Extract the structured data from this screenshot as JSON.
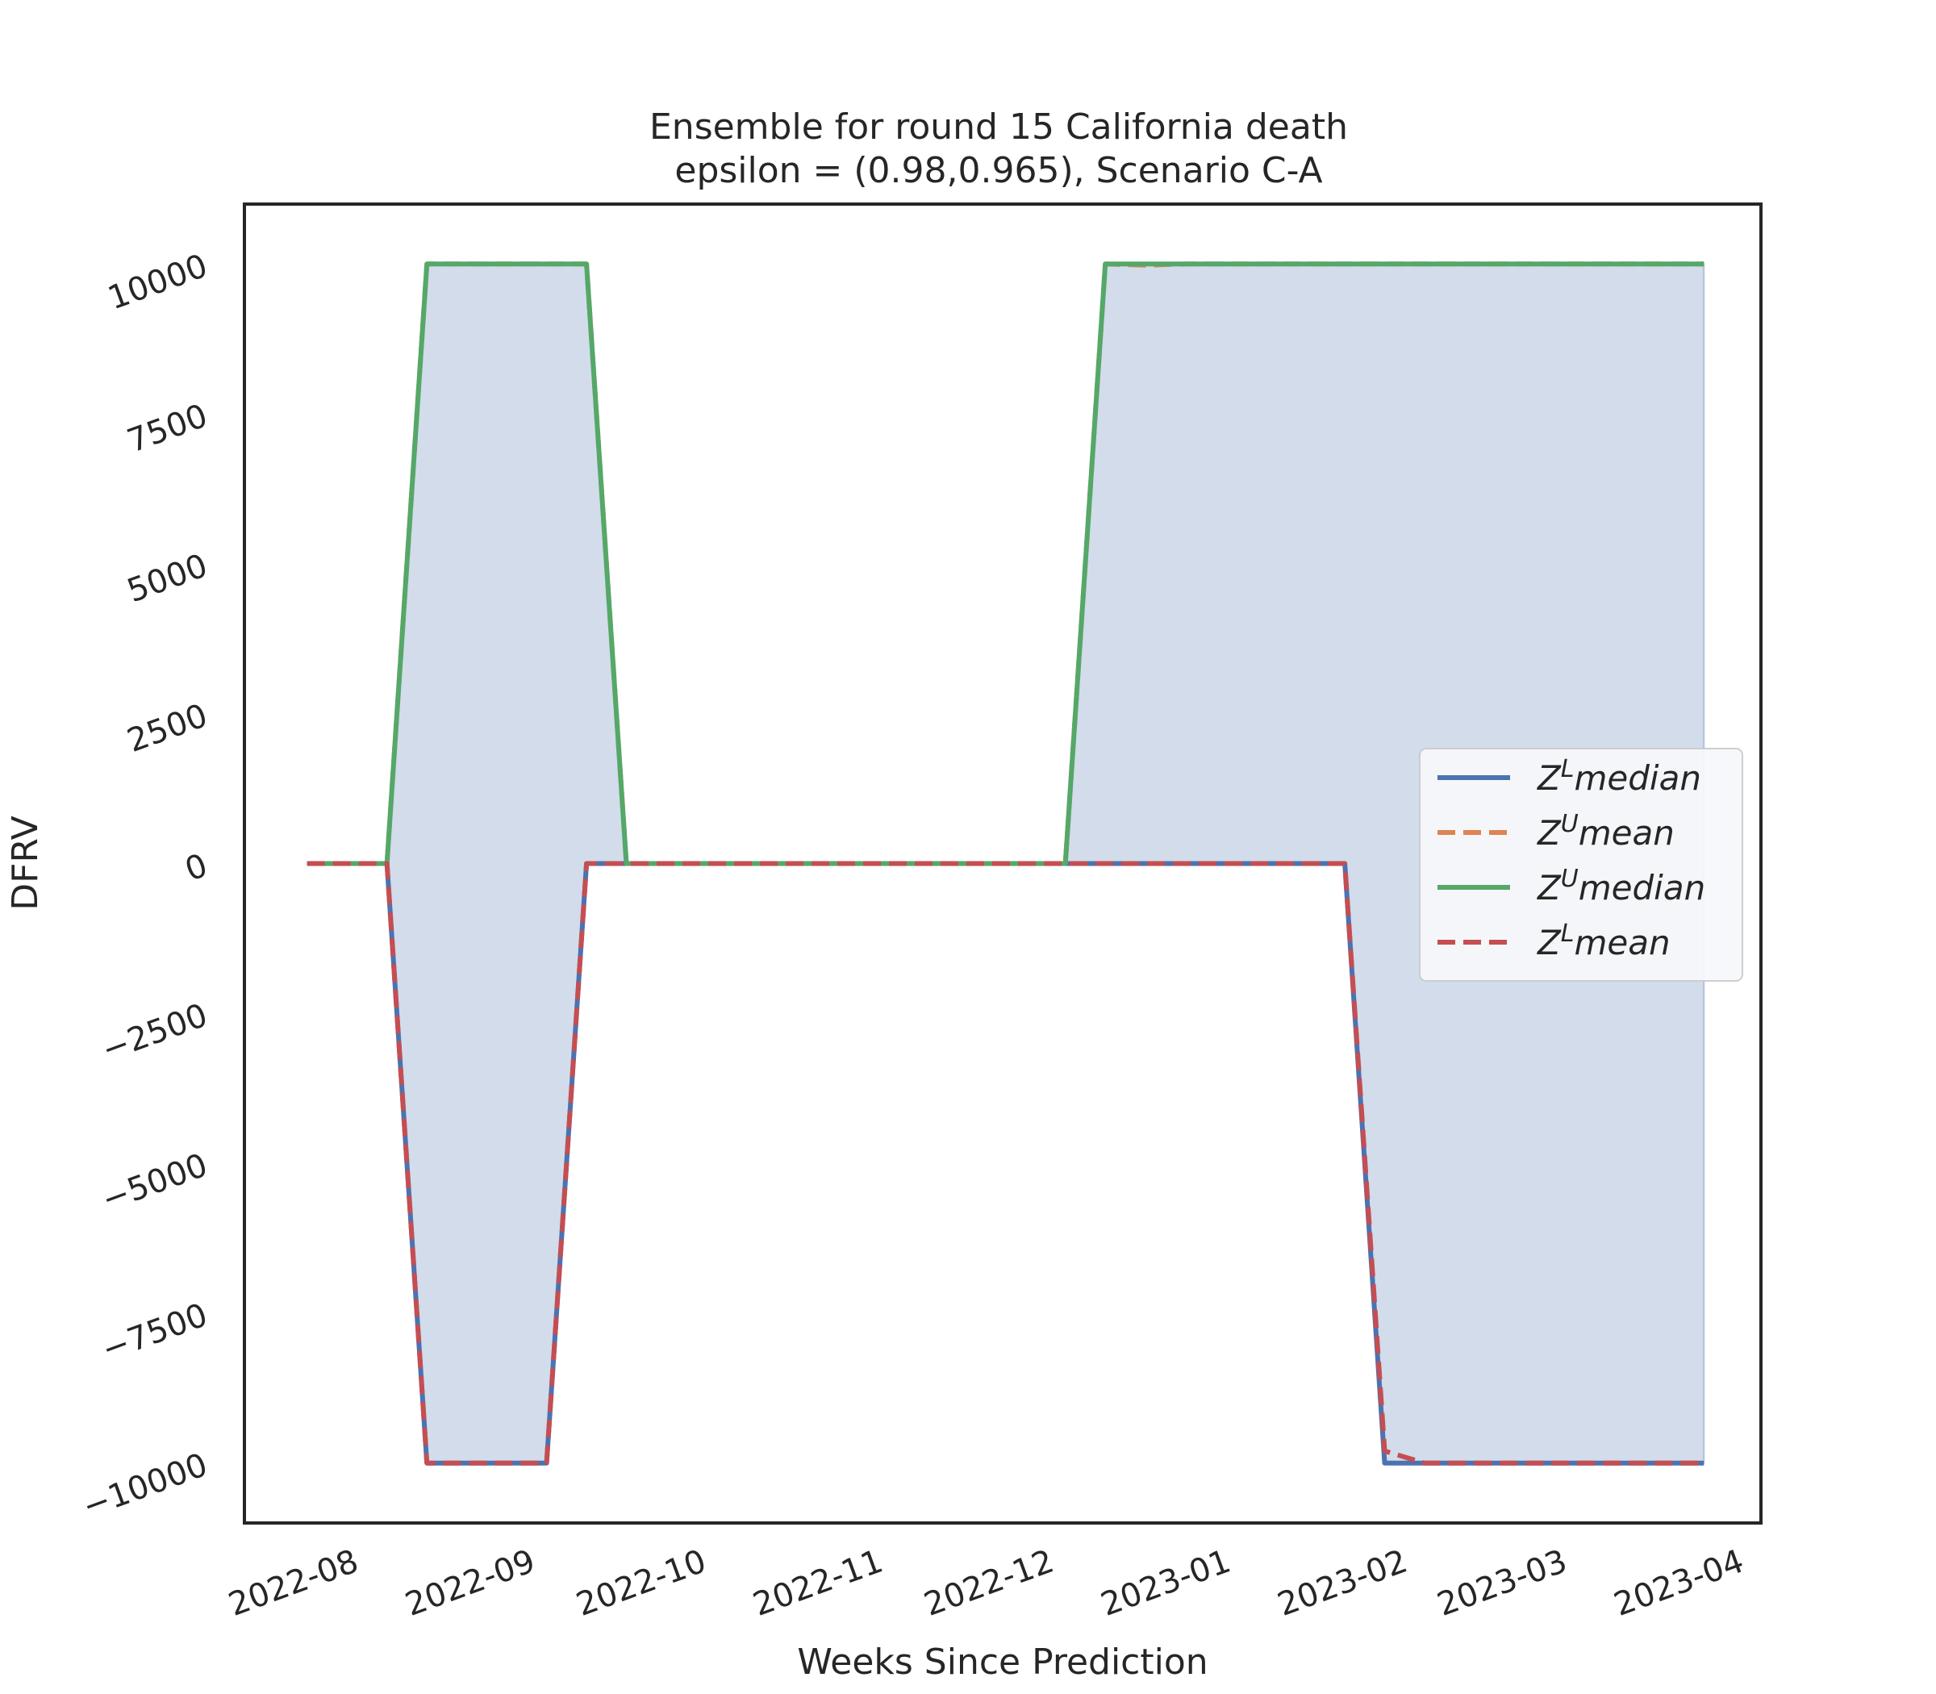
{
  "chart_data": {
    "type": "line",
    "title": [
      "Ensemble for round 15 California  death",
      "epsilon = (0.98,0.965), Scenario C-A"
    ],
    "xlabel": "Weeks Since Prediction",
    "ylabel": "DFRV",
    "xlim": [
      "2022-07-13",
      "2023-04-05"
    ],
    "ylim": [
      -11000,
      11000
    ],
    "xticks": [
      "2022-08-01",
      "2022-09-01",
      "2022-10-01",
      "2022-11-01",
      "2022-12-01",
      "2023-01-01",
      "2023-02-01",
      "2023-03-01",
      "2023-04-01"
    ],
    "xtick_labels": [
      "2022-08",
      "2022-09",
      "2022-10",
      "2022-11",
      "2022-12",
      "2023-01",
      "2023-02",
      "2023-03",
      "2023-04"
    ],
    "yticks": [
      -10000,
      -7500,
      -5000,
      -2500,
      0,
      2500,
      5000,
      7500,
      10000
    ],
    "ytick_labels": [
      "−10000",
      "−7500",
      "−5000",
      "−2500",
      "0",
      "2500",
      "5000",
      "7500",
      "10000"
    ],
    "x": [
      "2022-07-24",
      "2022-07-31",
      "2022-08-07",
      "2022-08-14",
      "2022-08-21",
      "2022-08-28",
      "2022-09-04",
      "2022-09-11",
      "2022-09-18",
      "2022-09-25",
      "2022-10-02",
      "2022-10-09",
      "2022-10-16",
      "2022-10-23",
      "2022-10-30",
      "2022-11-06",
      "2022-11-13",
      "2022-11-20",
      "2022-11-27",
      "2022-12-04",
      "2022-12-11",
      "2022-12-18",
      "2022-12-25",
      "2023-01-01",
      "2023-01-08",
      "2023-01-15",
      "2023-01-22",
      "2023-01-29",
      "2023-02-05",
      "2023-02-12",
      "2023-02-19",
      "2023-02-26",
      "2023-03-05",
      "2023-03-12",
      "2023-03-19",
      "2023-03-26"
    ],
    "series": [
      {
        "name": "Z^L median",
        "label_base": "Z",
        "label_sup": "L",
        "label_rest": "median",
        "color": "#4c72b0",
        "dash": "solid",
        "values": [
          0,
          0,
          0,
          -10000,
          -10000,
          -10000,
          -10000,
          0,
          0,
          0,
          0,
          0,
          0,
          0,
          0,
          0,
          0,
          0,
          0,
          0,
          0,
          0,
          0,
          0,
          0,
          0,
          0,
          -10000,
          -10000,
          -10000,
          -10000,
          -10000,
          -10000,
          -10000,
          -10000,
          -10000
        ]
      },
      {
        "name": "Z^U mean",
        "label_base": "Z",
        "label_sup": "U",
        "label_rest": "mean",
        "color": "#dd8452",
        "dash": "dashed",
        "values": [
          0,
          0,
          0,
          10000,
          10000,
          10000,
          10000,
          10000,
          0,
          0,
          0,
          0,
          0,
          0,
          0,
          0,
          0,
          0,
          0,
          0,
          10000,
          9980,
          10000,
          10000,
          10000,
          10000,
          10000,
          10000,
          10000,
          10000,
          10000,
          10000,
          10000,
          10000,
          10000,
          10000
        ]
      },
      {
        "name": "Z^U median",
        "label_base": "Z",
        "label_sup": "U",
        "label_rest": "median",
        "color": "#55a868",
        "dash": "solid",
        "values": [
          0,
          0,
          0,
          10000,
          10000,
          10000,
          10000,
          10000,
          0,
          0,
          0,
          0,
          0,
          0,
          0,
          0,
          0,
          0,
          0,
          0,
          10000,
          10000,
          10000,
          10000,
          10000,
          10000,
          10000,
          10000,
          10000,
          10000,
          10000,
          10000,
          10000,
          10000,
          10000,
          10000
        ]
      },
      {
        "name": "Z^L mean",
        "label_base": "Z",
        "label_sup": "L",
        "label_rest": "mean",
        "color": "#c44e52",
        "dash": "dashed",
        "values": [
          0,
          0,
          0,
          -10000,
          -10000,
          -10000,
          -10000,
          0,
          0,
          0,
          0,
          0,
          0,
          0,
          0,
          0,
          0,
          0,
          0,
          0,
          0,
          0,
          0,
          0,
          0,
          0,
          0,
          -9800,
          -10000,
          -10000,
          -10000,
          -10000,
          -10000,
          -10000,
          -10000,
          -10000
        ]
      }
    ],
    "band": {
      "lower_series": "Z^L median",
      "upper_series": "Z^U median",
      "color": "#4c72b0",
      "opacity": 0.25
    },
    "legend": {
      "placement": "center-right"
    },
    "grid": false
  }
}
